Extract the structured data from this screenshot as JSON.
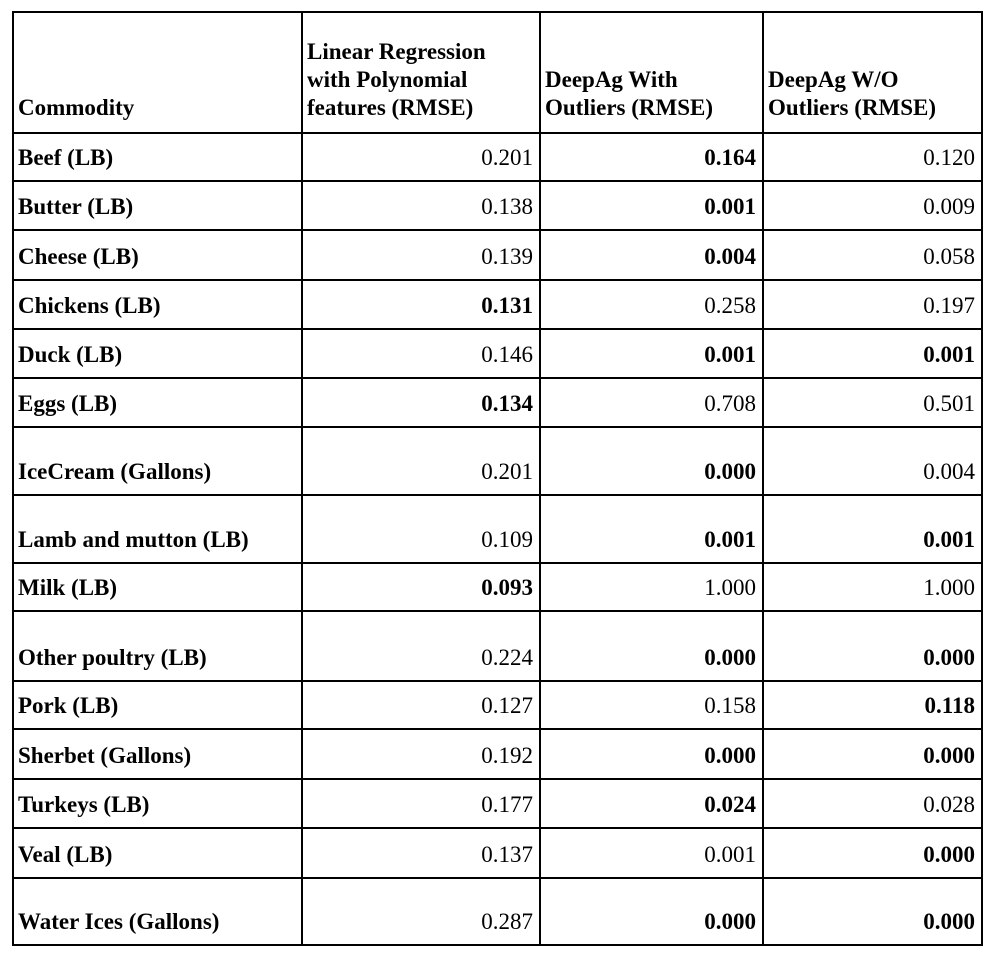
{
  "table": {
    "header": [
      "Commodity",
      "Linear Regression with Polynomial features (RMSE)",
      "DeepAg With Outliers (RMSE)",
      "DeepAg W/O Outliers (RMSE)"
    ],
    "rows": [
      {
        "cells": [
          "Beef (LB)",
          "0.201",
          "0.164",
          "0.120"
        ],
        "bold": [
          true,
          false,
          true,
          false
        ]
      },
      {
        "cells": [
          "Butter (LB)",
          "0.138",
          "0.001",
          "0.009"
        ],
        "bold": [
          true,
          false,
          true,
          false
        ]
      },
      {
        "cells": [
          "Cheese (LB)",
          "0.139",
          "0.004",
          "0.058"
        ],
        "bold": [
          true,
          false,
          true,
          false
        ]
      },
      {
        "cells": [
          "Chickens (LB)",
          "0.131",
          "0.258",
          "0.197"
        ],
        "bold": [
          true,
          true,
          false,
          false
        ]
      },
      {
        "cells": [
          "Duck (LB)",
          "0.146",
          "0.001",
          "0.001"
        ],
        "bold": [
          true,
          false,
          true,
          true
        ]
      },
      {
        "cells": [
          "Eggs (LB)",
          "0.134",
          "0.708",
          "0.501"
        ],
        "bold": [
          true,
          true,
          false,
          false
        ]
      },
      {
        "cells": [
          "IceCream (Gallons)",
          "0.201",
          "0.000",
          "0.004"
        ],
        "bold": [
          true,
          false,
          true,
          false
        ]
      },
      {
        "cells": [
          "Lamb and mutton (LB)",
          "0.109",
          "0.001",
          "0.001"
        ],
        "bold": [
          true,
          false,
          true,
          true
        ]
      },
      {
        "cells": [
          "Milk (LB)",
          "0.093",
          "1.000",
          "1.000"
        ],
        "bold": [
          true,
          true,
          false,
          false
        ]
      },
      {
        "cells": [
          "Other poultry (LB)",
          "0.224",
          "0.000",
          "0.000"
        ],
        "bold": [
          true,
          false,
          true,
          true
        ]
      },
      {
        "cells": [
          "Pork (LB)",
          "0.127",
          "0.158",
          "0.118"
        ],
        "bold": [
          true,
          false,
          false,
          true
        ]
      },
      {
        "cells": [
          "Sherbet (Gallons)",
          "0.192",
          "0.000",
          "0.000"
        ],
        "bold": [
          true,
          false,
          true,
          true
        ]
      },
      {
        "cells": [
          "Turkeys (LB)",
          "0.177",
          "0.024",
          "0.028"
        ],
        "bold": [
          true,
          false,
          true,
          false
        ]
      },
      {
        "cells": [
          "Veal (LB)",
          "0.137",
          "0.001",
          "0.000"
        ],
        "bold": [
          true,
          false,
          false,
          true
        ]
      },
      {
        "cells": [
          "Water Ices (Gallons)",
          "0.287",
          "0.000",
          "0.000"
        ],
        "bold": [
          true,
          false,
          true,
          true
        ]
      }
    ]
  }
}
